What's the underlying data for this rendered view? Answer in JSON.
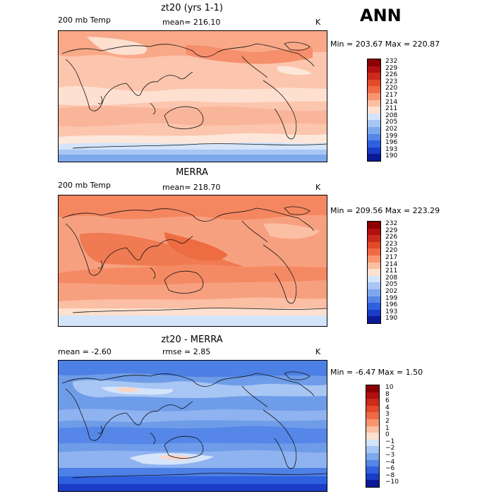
{
  "header": {
    "season": "ANN"
  },
  "panels": [
    {
      "title": "zt20 (yrs 1-1)",
      "left_label": "200 mb Temp",
      "center_label": "mean= 216.10",
      "unit": "K",
      "minmax": "Min = 203.67 Max = 220.87",
      "base_color": "#fcc5ae"
    },
    {
      "title": "MERRA",
      "left_label": "200 mb Temp",
      "center_label": "mean= 218.70",
      "unit": "K",
      "minmax": "Min = 209.56 Max = 223.29",
      "base_color": "#f7a080"
    },
    {
      "title": "zt20 - MERRA",
      "left_label": "mean =   -2.60",
      "center_label": "rmse =    2.85",
      "unit": "K",
      "minmax": "Min =  -6.47 Max =   1.50",
      "base_color": "#6e9ce8"
    }
  ],
  "colorbars": [
    {
      "labels": [
        "232",
        "229",
        "226",
        "223",
        "220",
        "217",
        "214",
        "211",
        "208",
        "205",
        "202",
        "199",
        "196",
        "193",
        "190"
      ],
      "colors": [
        "#8b0000",
        "#b01010",
        "#cc2a1a",
        "#e24a2a",
        "#f06a45",
        "#f89570",
        "#fbbfa3",
        "#fde0cf",
        "#d4e4fa",
        "#a8c6f4",
        "#7ea8ee",
        "#5586e8",
        "#2f60de",
        "#1a3cc6",
        "#0a1a96"
      ]
    },
    {
      "labels": [
        "232",
        "229",
        "226",
        "223",
        "220",
        "217",
        "214",
        "211",
        "208",
        "205",
        "202",
        "199",
        "196",
        "193",
        "190"
      ],
      "colors": [
        "#8b0000",
        "#b01010",
        "#cc2a1a",
        "#e24a2a",
        "#f06a45",
        "#f89570",
        "#fbbfa3",
        "#fde0cf",
        "#d4e4fa",
        "#a8c6f4",
        "#7ea8ee",
        "#5586e8",
        "#2f60de",
        "#1a3cc6",
        "#0a1a96"
      ]
    },
    {
      "labels": [
        "10",
        "8",
        "6",
        "4",
        "3",
        "2",
        "1",
        "0",
        "−1",
        "−2",
        "−3",
        "−4",
        "−6",
        "−8",
        "−10"
      ],
      "colors": [
        "#8b0000",
        "#b01010",
        "#cc2a1a",
        "#e24a2a",
        "#f06a45",
        "#f89570",
        "#fbbfa3",
        "#fde0cf",
        "#d4e4fa",
        "#a8c6f4",
        "#7ea8ee",
        "#5586e8",
        "#2f60de",
        "#1a3cc6",
        "#0a1a96"
      ]
    }
  ]
}
